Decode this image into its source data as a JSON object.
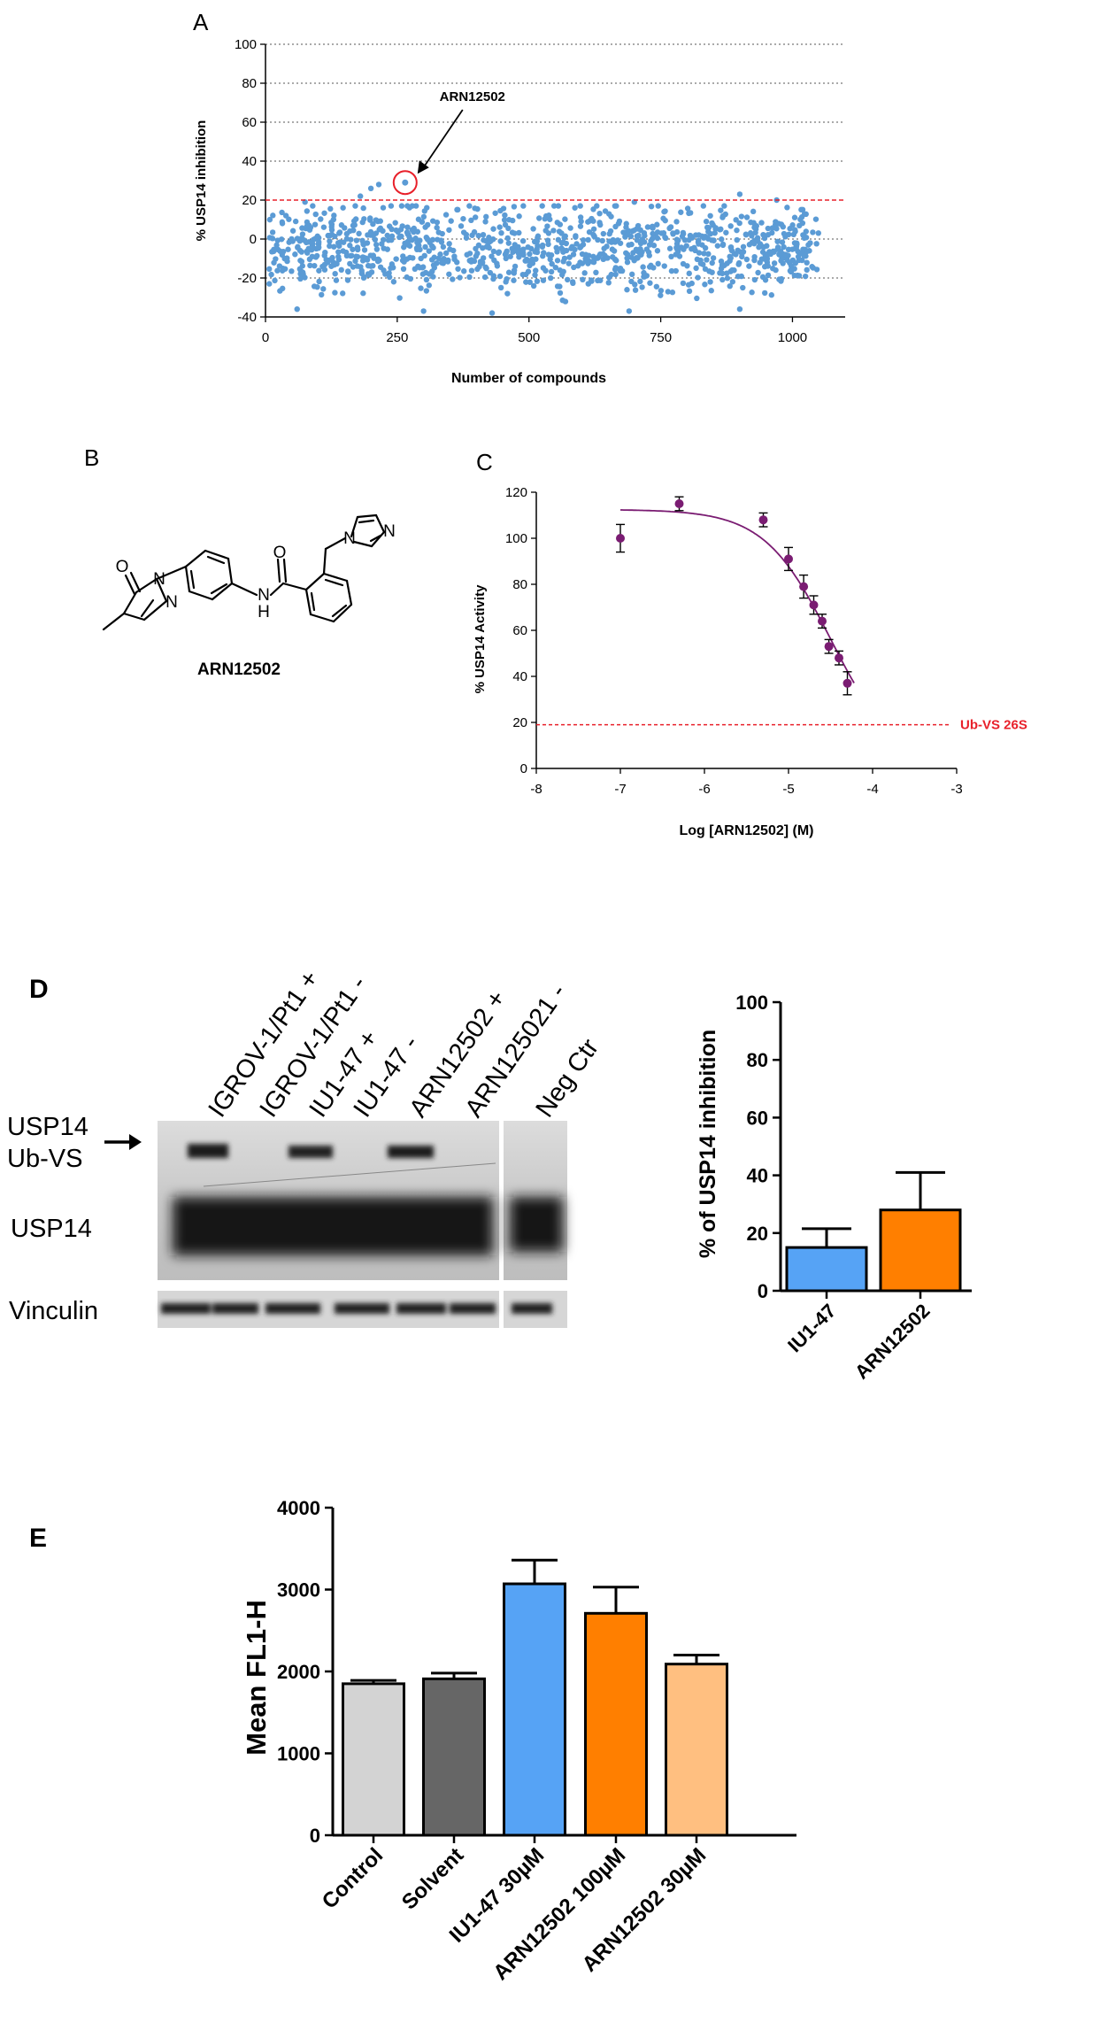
{
  "panels": {
    "A": "A",
    "B": "B",
    "C": "C",
    "D": "D",
    "E": "E"
  },
  "colors": {
    "scatter_points": "#5b9bd5",
    "threshold": "#e8202a",
    "curve": "#7a1c72",
    "points_c": "#7a1c72",
    "bar_iu1_47": "#56a3f5",
    "bar_arn12502": "#ff7f00",
    "bar_control": "#d3d3d3",
    "bar_solvent": "#666666",
    "bar_arn_30": "#ffbf80"
  },
  "molecule": {
    "name": "ARN12502",
    "atom_labels": {
      "o1": "O",
      "o2": "O",
      "n1": "N",
      "n2": "N",
      "nh": "N",
      "h": "H",
      "n3": "N",
      "n4": "N"
    }
  },
  "blot": {
    "lane_labels": [
      "IGROV-1/Pt1 +",
      "IGROV-1/Pt1 -",
      "IU1-47 +",
      "IU1-47 -",
      "ARN12502 +",
      "ARN125021 -",
      "Neg Ctr"
    ],
    "row_labels": {
      "usp14_ubvs_line1": "USP14",
      "usp14_ubvs_line2": "Ub-VS",
      "usp14": "USP14",
      "vinculin": "Vinculin"
    }
  },
  "chart_data": [
    {
      "id": "A",
      "type": "scatter",
      "title": "",
      "xlabel": "Number of compounds",
      "ylabel": "% USP14 inhibition",
      "xlim": [
        0,
        1100
      ],
      "ylim": [
        -40,
        100
      ],
      "xticks": [
        0,
        250,
        500,
        750,
        1000
      ],
      "yticks": [
        -40,
        -20,
        0,
        20,
        40,
        60,
        80,
        100
      ],
      "threshold": 20,
      "grid": "horizontal dotted",
      "n_points": 1060,
      "distribution": "approximately -40 to 20, centered near -5",
      "highlight": {
        "label": "ARN12502",
        "x": 265,
        "y": 29
      },
      "notable_points": [
        {
          "x": 180,
          "y": 22
        },
        {
          "x": 200,
          "y": 26
        },
        {
          "x": 215,
          "y": 28
        },
        {
          "x": 75,
          "y": 19
        },
        {
          "x": 900,
          "y": 23
        },
        {
          "x": 970,
          "y": 20
        },
        {
          "x": 700,
          "y": 19
        },
        {
          "x": 60,
          "y": -36
        },
        {
          "x": 300,
          "y": -37
        },
        {
          "x": 430,
          "y": -38
        },
        {
          "x": 690,
          "y": -37
        },
        {
          "x": 900,
          "y": -36
        }
      ]
    },
    {
      "id": "C",
      "type": "scatter",
      "title": "",
      "xlabel": "Log [ARN12502] (M)",
      "ylabel": "% USP14 Activity",
      "xlim": [
        -8,
        -3
      ],
      "ylim": [
        0,
        120
      ],
      "xticks": [
        -8,
        -7,
        -6,
        -5,
        -4,
        -3
      ],
      "yticks": [
        0,
        20,
        40,
        60,
        80,
        100,
        120
      ],
      "points": [
        {
          "x": -7.0,
          "y": 100,
          "err": 6
        },
        {
          "x": -6.3,
          "y": 115,
          "err": 3
        },
        {
          "x": -5.3,
          "y": 108,
          "err": 3
        },
        {
          "x": -5.0,
          "y": 91,
          "err": 5
        },
        {
          "x": -4.82,
          "y": 79,
          "err": 5
        },
        {
          "x": -4.7,
          "y": 71,
          "err": 4
        },
        {
          "x": -4.6,
          "y": 64,
          "err": 3
        },
        {
          "x": -4.52,
          "y": 53,
          "err": 3
        },
        {
          "x": -4.4,
          "y": 48,
          "err": 3
        },
        {
          "x": -4.3,
          "y": 37,
          "err": 5
        }
      ],
      "fit": {
        "top": 112.5,
        "bottom": 0,
        "logIC50": -4.5,
        "hill": 1.1
      },
      "reference_line": {
        "y": 19,
        "label": "Ub-VS 26S"
      }
    },
    {
      "id": "D",
      "type": "bar",
      "title": "",
      "xlabel": "",
      "ylabel": "% of USP14 inhibition",
      "categories": [
        "IU1-47",
        "ARN12502"
      ],
      "values": [
        15,
        28
      ],
      "errors": [
        6.5,
        13
      ],
      "ylim": [
        0,
        100
      ],
      "yticks": [
        0,
        20,
        40,
        60,
        80,
        100
      ]
    },
    {
      "id": "E",
      "type": "bar",
      "title": "",
      "xlabel": "",
      "ylabel": "Mean FL1-H",
      "categories": [
        "Control",
        "Solvent",
        "IU1-47 30µM",
        "ARN12502 100µM",
        "ARN12502 30µM"
      ],
      "values": [
        1850,
        1910,
        3070,
        2710,
        2090
      ],
      "errors": [
        40,
        70,
        290,
        320,
        110
      ],
      "ylim": [
        0,
        4000
      ],
      "yticks": [
        0,
        1000,
        2000,
        3000,
        4000
      ]
    }
  ]
}
